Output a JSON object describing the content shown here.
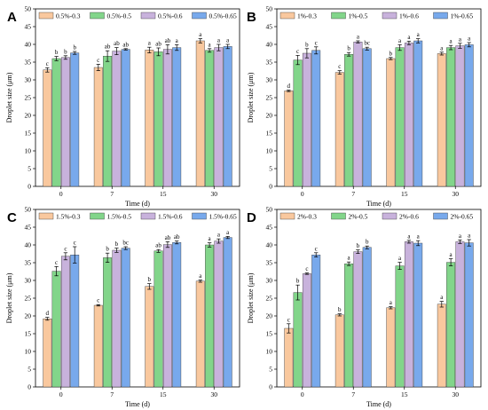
{
  "colors": [
    "#f9c89e",
    "#82d58a",
    "#c8b2dc",
    "#78a9ec"
  ],
  "chart_data": [
    {
      "type": "bar",
      "panel": "A",
      "xlabel": "Time (d)",
      "ylabel": "Droplet size (μm)",
      "ylim": [
        0,
        50
      ],
      "yticks": [
        0,
        5,
        10,
        15,
        20,
        25,
        30,
        35,
        40,
        45,
        50
      ],
      "categories": [
        "0",
        "7",
        "15",
        "30"
      ],
      "legend_position": "top-left",
      "series": [
        {
          "name": "0.5%-0.3",
          "values": [
            32.8,
            33.5,
            38.4,
            41.0
          ],
          "errors": [
            0.6,
            0.9,
            0.8,
            0.6
          ],
          "labels": [
            "c",
            "c",
            "a",
            "a"
          ]
        },
        {
          "name": "0.5%-0.5",
          "values": [
            36.0,
            36.7,
            37.9,
            38.3
          ],
          "errors": [
            0.6,
            1.5,
            1.1,
            0.5
          ],
          "labels": [
            "b",
            "ab",
            "ab",
            "a"
          ]
        },
        {
          "name": "0.5%-0.6",
          "values": [
            36.3,
            38.1,
            38.6,
            39.1
          ],
          "errors": [
            0.5,
            1.0,
            1.3,
            0.9
          ],
          "labels": [
            "b",
            "ab",
            "ab",
            "a"
          ]
        },
        {
          "name": "0.5%-0.65",
          "values": [
            37.6,
            38.6,
            39.1,
            39.4
          ],
          "errors": [
            0.4,
            0.2,
            0.8,
            0.6
          ],
          "labels": [
            "b",
            "ab",
            "a",
            "a"
          ]
        }
      ]
    },
    {
      "type": "bar",
      "panel": "B",
      "xlabel": "Time (d)",
      "ylabel": "Droplet size (μm)",
      "ylim": [
        0,
        50
      ],
      "yticks": [
        0,
        5,
        10,
        15,
        20,
        25,
        30,
        35,
        40,
        45,
        50
      ],
      "categories": [
        "0",
        "7",
        "15",
        "30"
      ],
      "legend_position": "top-left",
      "series": [
        {
          "name": "1%-0.3",
          "values": [
            26.9,
            32.1,
            36.0,
            37.4
          ],
          "errors": [
            0.2,
            0.5,
            0.3,
            0.4
          ],
          "labels": [
            "d",
            "c",
            "b",
            "a"
          ]
        },
        {
          "name": "1%-0.5",
          "values": [
            35.6,
            37.2,
            39.1,
            39.1
          ],
          "errors": [
            1.3,
            0.5,
            0.8,
            0.6
          ],
          "labels": [
            "c",
            "b",
            "a",
            "a"
          ]
        },
        {
          "name": "1%-0.6",
          "values": [
            37.5,
            40.7,
            40.4,
            39.6
          ],
          "errors": [
            1.3,
            0.3,
            0.5,
            0.7
          ],
          "labels": [
            "b",
            "a",
            "a",
            "a"
          ]
        },
        {
          "name": "1%-0.65",
          "values": [
            38.3,
            38.8,
            41.0,
            39.9
          ],
          "errors": [
            1.0,
            0.4,
            0.6,
            0.6
          ],
          "labels": [
            "c",
            "bc",
            "a",
            "a"
          ]
        }
      ]
    },
    {
      "type": "bar",
      "panel": "C",
      "xlabel": "Time (d)",
      "ylabel": "Droplet size (μm)",
      "ylim": [
        0,
        50
      ],
      "yticks": [
        0,
        5,
        10,
        15,
        20,
        25,
        30,
        35,
        40,
        45,
        50
      ],
      "categories": [
        "0",
        "7",
        "15",
        "30"
      ],
      "legend_position": "top-left",
      "series": [
        {
          "name": "1.5%-0.3",
          "values": [
            19.2,
            23.0,
            28.3,
            29.8
          ],
          "errors": [
            0.4,
            0.2,
            0.8,
            0.3
          ],
          "labels": [
            "d",
            "c",
            "b",
            "a"
          ]
        },
        {
          "name": "1.5%-0.5",
          "values": [
            32.6,
            36.4,
            38.3,
            40.0
          ],
          "errors": [
            1.3,
            1.3,
            0.4,
            0.6
          ],
          "labels": [
            "c",
            "b",
            "ab",
            "a"
          ]
        },
        {
          "name": "1.5%-0.6",
          "values": [
            36.8,
            38.5,
            40.1,
            41.1
          ],
          "errors": [
            1.0,
            0.6,
            0.8,
            0.6
          ],
          "labels": [
            "c",
            "b",
            "ab",
            "a"
          ]
        },
        {
          "name": "1.5%-0.65",
          "values": [
            37.2,
            39.1,
            40.7,
            42.1
          ],
          "errors": [
            2.3,
            0.4,
            0.4,
            0.3
          ],
          "labels": [
            "c",
            "bc",
            "ab",
            "a"
          ]
        }
      ]
    },
    {
      "type": "bar",
      "panel": "D",
      "xlabel": "Time (d)",
      "ylabel": "Droplet size (μm)",
      "ylim": [
        0,
        50
      ],
      "yticks": [
        0,
        5,
        10,
        15,
        20,
        25,
        30,
        35,
        40,
        45,
        50
      ],
      "categories": [
        "0",
        "7",
        "15",
        "30"
      ],
      "legend_position": "top-left",
      "series": [
        {
          "name": "2%-0.3",
          "values": [
            16.5,
            20.3,
            22.3,
            23.3
          ],
          "errors": [
            1.3,
            0.3,
            0.3,
            0.8
          ],
          "labels": [
            "c",
            "b",
            "a",
            "a"
          ]
        },
        {
          "name": "2%-0.5",
          "values": [
            26.6,
            34.7,
            34.1,
            35.1
          ],
          "errors": [
            2.1,
            0.5,
            1.0,
            1.0
          ],
          "labels": [
            "b",
            "a",
            "a",
            "a"
          ]
        },
        {
          "name": "2%-0.6",
          "values": [
            31.9,
            38.1,
            40.9,
            40.9
          ],
          "errors": [
            0.2,
            0.5,
            0.4,
            0.5
          ],
          "labels": [
            "c",
            "b",
            "a",
            "a"
          ]
        },
        {
          "name": "2%-0.65",
          "values": [
            37.2,
            39.3,
            40.5,
            40.6
          ],
          "errors": [
            0.6,
            0.4,
            0.7,
            0.9
          ],
          "labels": [
            "c",
            "b",
            "a",
            "a"
          ]
        }
      ]
    }
  ]
}
